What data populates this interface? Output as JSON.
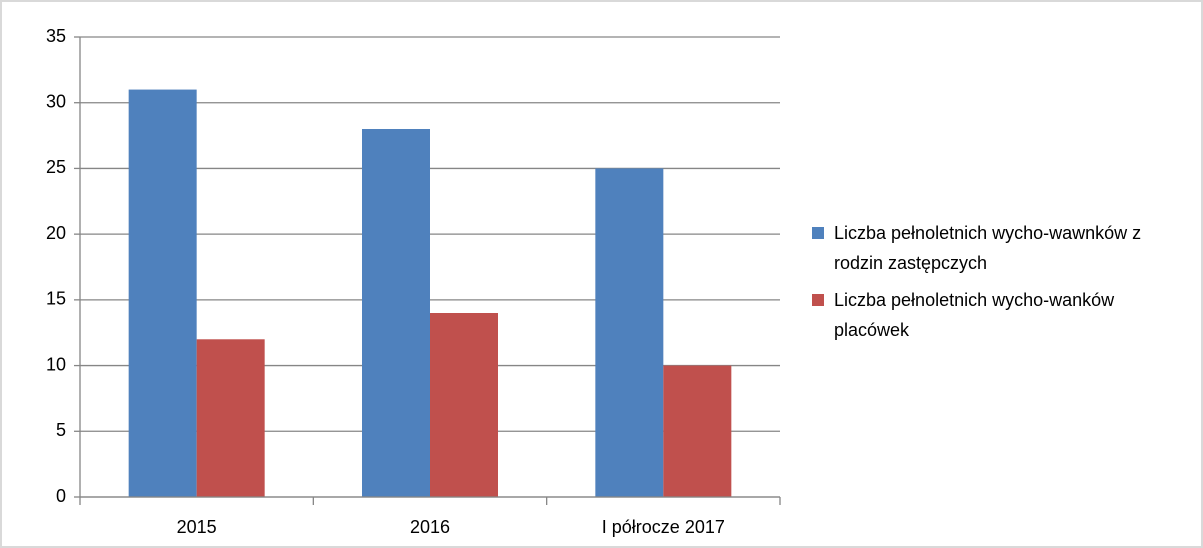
{
  "chart_data": {
    "type": "bar",
    "categories": [
      "2015",
      "2016",
      "I półrocze 2017"
    ],
    "series": [
      {
        "name": "Liczba pełnoletnich wycho-wawnków z rodzin zastępczych",
        "color": "#4f81bd",
        "values": [
          31,
          28,
          25
        ]
      },
      {
        "name": "Liczba pełnoletnich wycho-wanków placówek",
        "color": "#c0504d",
        "values": [
          12,
          14,
          10
        ]
      }
    ],
    "ylim": [
      0,
      35
    ],
    "yticks": [
      0,
      5,
      10,
      15,
      20,
      25,
      30,
      35
    ],
    "grid": true,
    "legend": "right"
  }
}
